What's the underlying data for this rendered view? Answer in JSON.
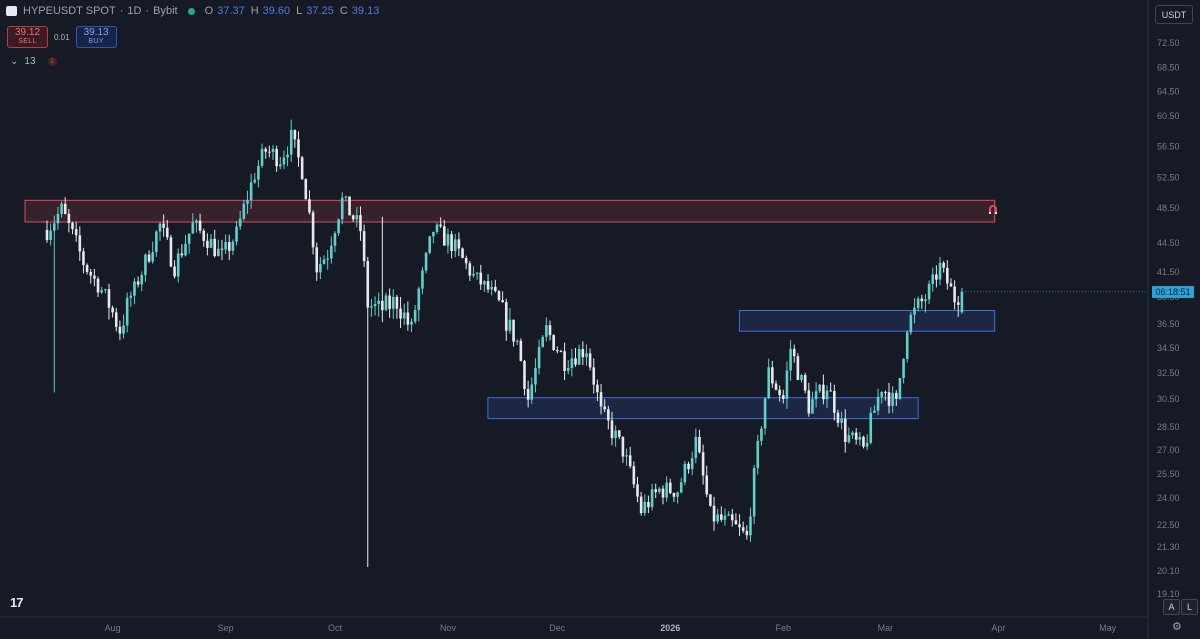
{
  "header": {
    "symbol": "HYPEUSDT SPOT",
    "interval": "1D",
    "exchange": "Bybit",
    "open_label": "O",
    "open": "37.37",
    "high_label": "H",
    "high": "39.60",
    "low_label": "L",
    "low": "37.25",
    "close_label": "C",
    "close": "39.13"
  },
  "trade": {
    "sell_price": "39.12",
    "sell_label": "SELL",
    "quantity": "0.01",
    "buy_price": "39.13",
    "buy_label": "BUY"
  },
  "indicator": {
    "count": "13",
    "badge": "1"
  },
  "currency": "USDT",
  "countdown": "06:18:51",
  "bottom": {
    "logo": "17",
    "a_label": "A",
    "l_label": "L"
  },
  "colors": {
    "up": "#5fd0cc",
    "down": "#e8e9ed",
    "resistance": "#e04a5a",
    "support": "#3d6fe0",
    "bg": "#161a25"
  },
  "chart_data": {
    "type": "candlestick",
    "title": "",
    "y_tick_labels": [
      "72.50",
      "68.50",
      "64.50",
      "60.50",
      "56.50",
      "52.50",
      "48.50",
      "44.50",
      "41.50",
      "38.50",
      "36.50",
      "34.50",
      "32.50",
      "30.50",
      "28.50",
      "27.00",
      "25.50",
      "24.00",
      "22.50",
      "21.30",
      "20.10",
      "19.10"
    ],
    "x_tick_labels": [
      "Aug",
      "Sep",
      "Oct",
      "Nov",
      "Dec",
      "2026",
      "Feb",
      "Mar",
      "Apr",
      "May"
    ],
    "zones": [
      {
        "type": "resistance",
        "from": "2025-07-14",
        "to": "2026-03-31",
        "low": 46.9,
        "high": 49.5
      },
      {
        "type": "support",
        "from": "2026-01-26",
        "to": "2026-03-31",
        "low": 35.9,
        "high": 37.5
      },
      {
        "type": "support",
        "from": "2025-11-18",
        "to": "2026-03-10",
        "low": 29.1,
        "high": 30.6
      }
    ],
    "waypoints": [
      [
        "2025-07-14",
        46.0
      ],
      [
        "2025-07-18",
        48.3
      ],
      [
        "2025-07-24",
        42.5
      ],
      [
        "2025-07-31",
        38.0
      ],
      [
        "2025-08-03",
        36.0
      ],
      [
        "2025-08-07",
        39.5
      ],
      [
        "2025-08-14",
        46.5
      ],
      [
        "2025-08-18",
        42.0
      ],
      [
        "2025-08-23",
        46.5
      ],
      [
        "2025-08-27",
        45.0
      ],
      [
        "2025-08-31",
        43.0
      ],
      [
        "2025-09-04",
        45.5
      ],
      [
        "2025-09-09",
        53.0
      ],
      [
        "2025-09-12",
        56.0
      ],
      [
        "2025-09-16",
        55.0
      ],
      [
        "2025-09-19",
        57.5
      ],
      [
        "2025-09-22",
        53.5
      ],
      [
        "2025-09-26",
        42.0
      ],
      [
        "2025-09-29",
        43.5
      ],
      [
        "2025-10-03",
        49.5
      ],
      [
        "2025-10-08",
        46.0
      ],
      [
        "2025-10-10",
        38.0
      ],
      [
        "2025-10-13",
        37.5
      ],
      [
        "2025-10-18",
        38.2
      ],
      [
        "2025-10-22",
        36.0
      ],
      [
        "2025-10-28",
        46.0
      ],
      [
        "2025-11-02",
        44.5
      ],
      [
        "2025-11-08",
        41.0
      ],
      [
        "2025-11-13",
        39.0
      ],
      [
        "2025-11-20",
        35.0
      ],
      [
        "2025-11-23",
        30.5
      ],
      [
        "2025-11-28",
        36.0
      ],
      [
        "2025-12-03",
        33.5
      ],
      [
        "2025-12-09",
        34.5
      ],
      [
        "2025-12-13",
        29.5
      ],
      [
        "2025-12-19",
        27.0
      ],
      [
        "2025-12-24",
        23.3
      ],
      [
        "2025-12-29",
        24.5
      ],
      [
        "2026-01-03",
        24.5
      ],
      [
        "2026-01-08",
        27.5
      ],
      [
        "2026-01-12",
        23.0
      ],
      [
        "2026-01-18",
        22.5
      ],
      [
        "2026-01-22",
        21.8
      ],
      [
        "2026-01-25",
        27.0
      ],
      [
        "2026-01-28",
        32.5
      ],
      [
        "2026-02-01",
        30.5
      ],
      [
        "2026-02-03",
        34.5
      ],
      [
        "2026-02-08",
        30.0
      ],
      [
        "2026-02-13",
        31.5
      ],
      [
        "2026-02-18",
        28.0
      ],
      [
        "2026-02-23",
        27.0
      ],
      [
        "2026-02-28",
        31.5
      ],
      [
        "2026-03-04",
        30.0
      ],
      [
        "2026-03-07",
        36.5
      ],
      [
        "2026-03-12",
        38.5
      ],
      [
        "2026-03-16",
        42.0
      ],
      [
        "2026-03-20",
        38.5
      ],
      [
        "2026-03-22",
        39.13
      ]
    ],
    "wicks": [
      {
        "date": "2025-07-16",
        "low": 31.0
      },
      {
        "date": "2025-10-10",
        "low": 20.3
      },
      {
        "date": "2025-10-14",
        "high": 47.5
      }
    ]
  }
}
